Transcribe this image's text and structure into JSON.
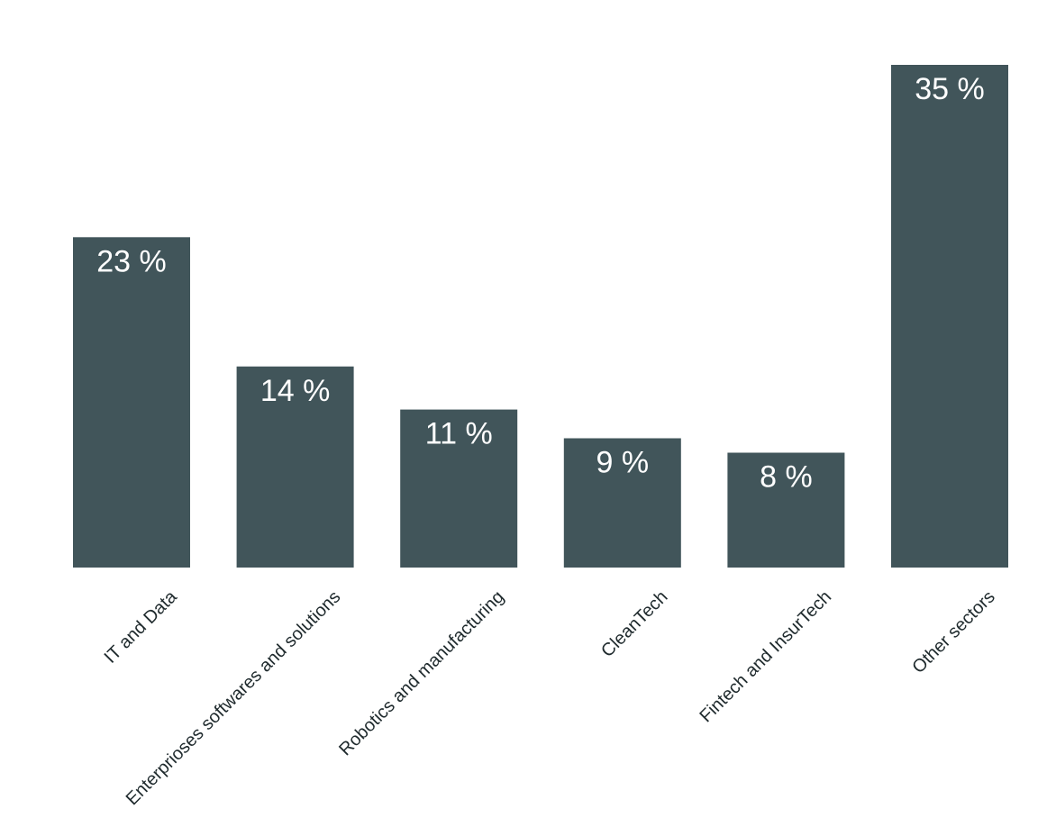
{
  "chart_data": {
    "type": "bar",
    "categories": [
      "IT and Data",
      "Enterprioses softwares and solutions",
      "Robotics and manufacturing",
      "CleanTech",
      "Fintech and InsurTech",
      "Other sectors"
    ],
    "values": [
      23,
      14,
      11,
      9,
      8,
      35
    ],
    "value_labels": [
      "23 %",
      "14 %",
      "11 %",
      "9 %",
      "8 %",
      "35 %"
    ],
    "title": "",
    "xlabel": "",
    "ylabel": "",
    "ylim": [
      0,
      35
    ],
    "grid": false,
    "legend": "none",
    "bar_color": "#41555a",
    "value_label_color": "#ffffff",
    "category_label_color": "#1f2a2d",
    "background_color": "#ffffff"
  }
}
